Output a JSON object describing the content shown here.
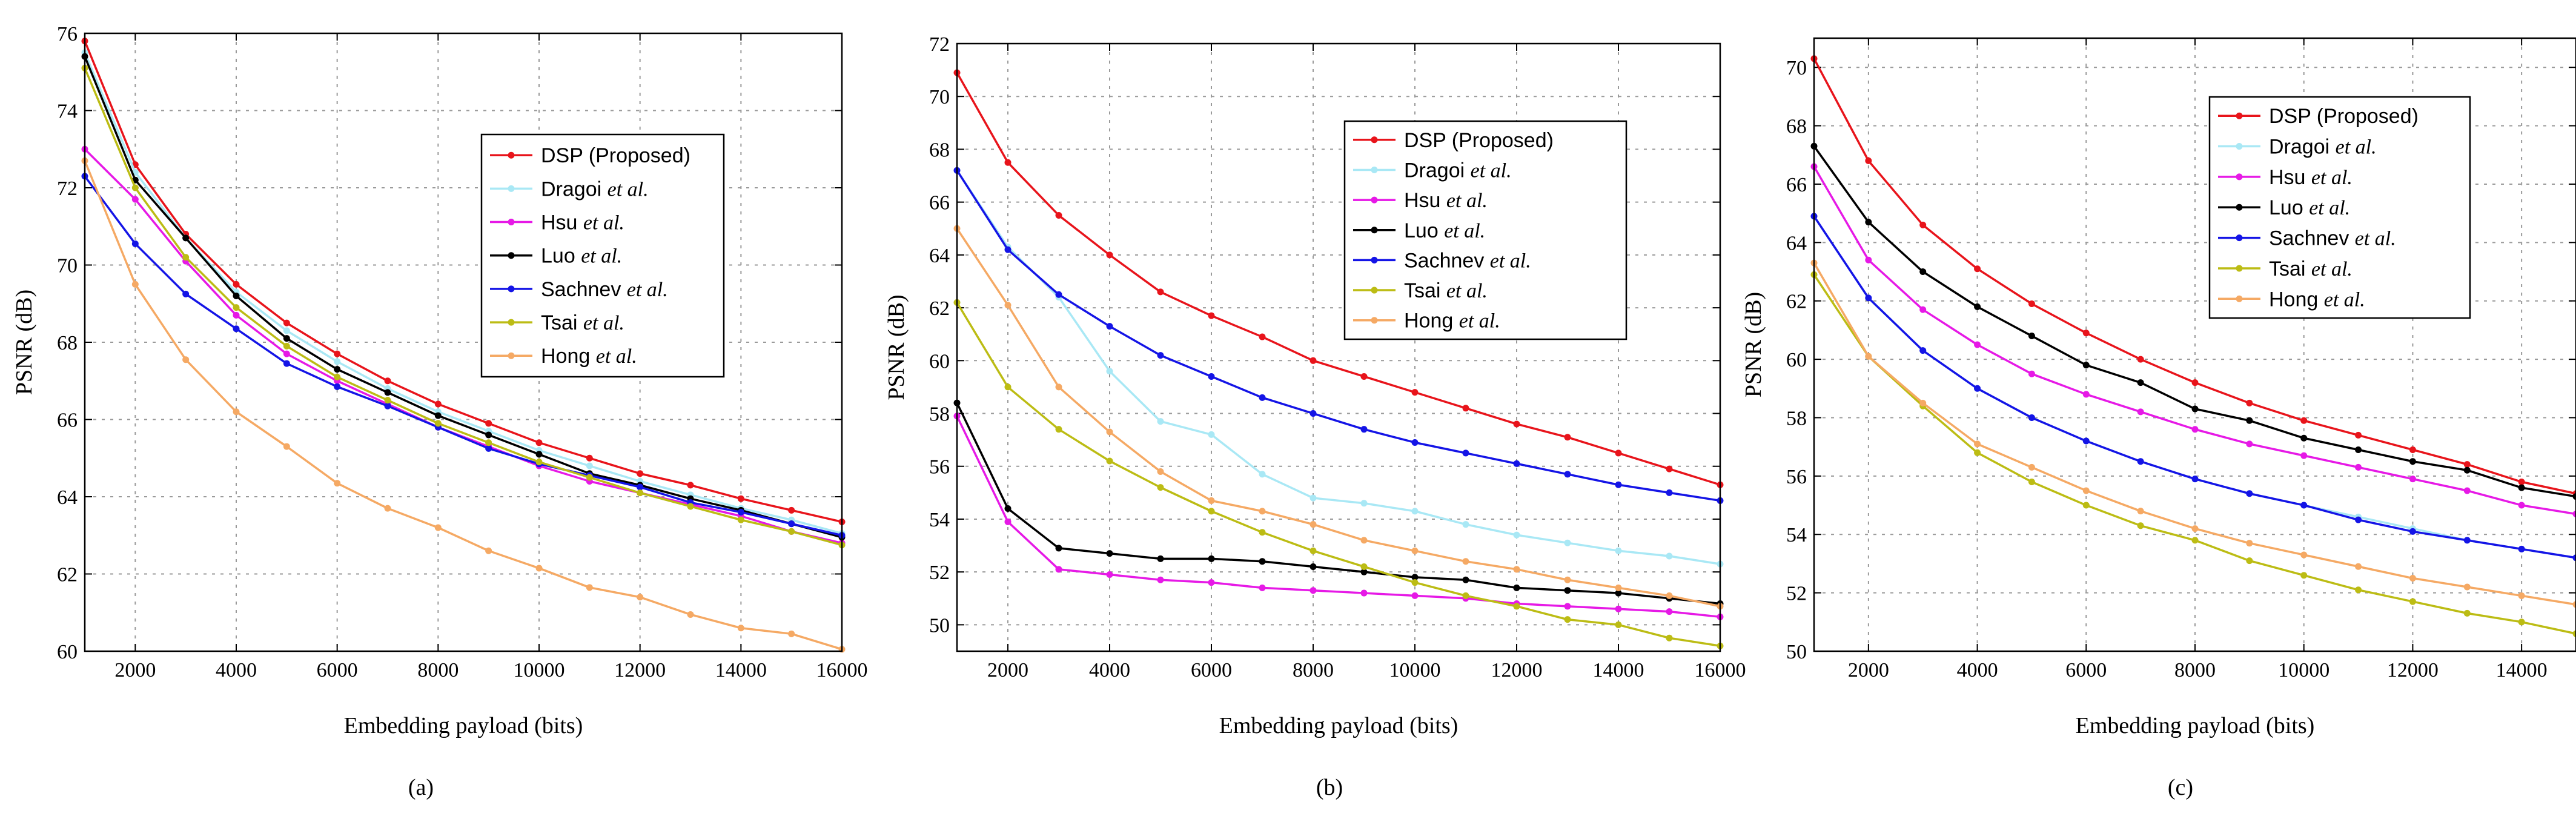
{
  "chart_data": [
    {
      "type": "line",
      "caption": "(a)",
      "xlabel": "Embedding payload (bits)",
      "ylabel": "PSNR (dB)",
      "xlim": [
        1000,
        16000
      ],
      "ylim": [
        60,
        76
      ],
      "xticks": [
        2000,
        4000,
        6000,
        8000,
        10000,
        12000,
        14000,
        16000
      ],
      "yticks": [
        60,
        62,
        64,
        66,
        68,
        70,
        72,
        74,
        76
      ],
      "grid": true,
      "legend_position": "center-right",
      "x": [
        1000,
        2000,
        3000,
        4000,
        5000,
        6000,
        7000,
        8000,
        9000,
        10000,
        11000,
        12000,
        13000,
        14000,
        15000,
        16000
      ],
      "series": [
        {
          "name": "DSP (Proposed)",
          "suffix": "",
          "color": "#e8141b",
          "values": [
            75.8,
            72.6,
            70.8,
            69.5,
            68.5,
            67.7,
            67.0,
            66.4,
            65.9,
            65.4,
            65.0,
            64.6,
            64.3,
            63.95,
            63.65,
            63.35
          ]
        },
        {
          "name": "Dragoi ",
          "suffix": "et al.",
          "color": "#a9e8f5",
          "values": [
            75.5,
            72.4,
            70.7,
            69.3,
            68.3,
            67.5,
            66.8,
            66.2,
            65.7,
            65.2,
            64.8,
            64.4,
            64.05,
            63.7,
            63.4,
            63.05
          ]
        },
        {
          "name": "Hsu ",
          "suffix": "et al.",
          "color": "#e619e6",
          "values": [
            73.0,
            71.7,
            70.1,
            68.7,
            67.7,
            67.0,
            66.4,
            65.8,
            65.3,
            64.8,
            64.4,
            64.1,
            63.8,
            63.5,
            63.1,
            62.8
          ]
        },
        {
          "name": "Luo ",
          "suffix": "et al.",
          "color": "#000000",
          "values": [
            75.4,
            72.2,
            70.7,
            69.2,
            68.1,
            67.3,
            66.7,
            66.1,
            65.6,
            65.1,
            64.6,
            64.3,
            63.95,
            63.65,
            63.3,
            62.95
          ]
        },
        {
          "name": "Sachnev ",
          "suffix": "et al.",
          "color": "#1414e6",
          "values": [
            72.3,
            70.55,
            69.25,
            68.35,
            67.45,
            66.85,
            66.35,
            65.8,
            65.25,
            64.85,
            64.55,
            64.25,
            63.85,
            63.6,
            63.3,
            63.0
          ]
        },
        {
          "name": "Tsai ",
          "suffix": "et al.",
          "color": "#bcbc14",
          "values": [
            75.1,
            72.0,
            70.2,
            68.9,
            67.9,
            67.1,
            66.5,
            65.9,
            65.4,
            64.9,
            64.5,
            64.1,
            63.75,
            63.4,
            63.1,
            62.75
          ]
        },
        {
          "name": "Hong ",
          "suffix": "et al.",
          "color": "#f5a964",
          "values": [
            72.7,
            69.5,
            67.55,
            66.2,
            65.3,
            64.35,
            63.7,
            63.2,
            62.6,
            62.15,
            61.65,
            61.4,
            60.95,
            60.6,
            60.45,
            60.05
          ]
        }
      ]
    },
    {
      "type": "line",
      "caption": "(b)",
      "xlabel": "Embedding payload (bits)",
      "ylabel": "PSNR (dB)",
      "xlim": [
        1000,
        16000
      ],
      "ylim": [
        49,
        72
      ],
      "xticks": [
        2000,
        4000,
        6000,
        8000,
        10000,
        12000,
        14000,
        16000
      ],
      "yticks": [
        50,
        52,
        54,
        56,
        58,
        60,
        62,
        64,
        66,
        68,
        70,
        72
      ],
      "grid": true,
      "legend_position": "top-right",
      "x": [
        1000,
        2000,
        3000,
        4000,
        5000,
        6000,
        7000,
        8000,
        9000,
        10000,
        11000,
        12000,
        13000,
        14000,
        15000,
        16000
      ],
      "series": [
        {
          "name": "DSP (Proposed)",
          "suffix": "",
          "color": "#e8141b",
          "values": [
            70.9,
            67.5,
            65.5,
            64.0,
            62.6,
            61.7,
            60.9,
            60.0,
            59.4,
            58.8,
            58.2,
            57.6,
            57.1,
            56.5,
            55.9,
            55.3
          ]
        },
        {
          "name": "Dragoi ",
          "suffix": "et al.",
          "color": "#a9e8f5",
          "values": [
            67.2,
            64.3,
            62.4,
            59.6,
            57.7,
            57.2,
            55.7,
            54.8,
            54.6,
            54.3,
            53.8,
            53.4,
            53.1,
            52.8,
            52.6,
            52.3
          ]
        },
        {
          "name": "Hsu ",
          "suffix": "et al.",
          "color": "#e619e6",
          "values": [
            57.9,
            53.9,
            52.1,
            51.9,
            51.7,
            51.6,
            51.4,
            51.3,
            51.2,
            51.1,
            51.0,
            50.8,
            50.7,
            50.6,
            50.5,
            50.3
          ]
        },
        {
          "name": "Luo ",
          "suffix": "et al.",
          "color": "#000000",
          "values": [
            58.4,
            54.4,
            52.9,
            52.7,
            52.5,
            52.5,
            52.4,
            52.2,
            52.0,
            51.8,
            51.7,
            51.4,
            51.3,
            51.2,
            51.0,
            50.8
          ]
        },
        {
          "name": "Sachnev ",
          "suffix": "et al.",
          "color": "#1414e6",
          "values": [
            67.2,
            64.2,
            62.5,
            61.3,
            60.2,
            59.4,
            58.6,
            58.0,
            57.4,
            56.9,
            56.5,
            56.1,
            55.7,
            55.3,
            55.0,
            54.7
          ]
        },
        {
          "name": "Tsai ",
          "suffix": "et al.",
          "color": "#bcbc14",
          "values": [
            62.2,
            59.0,
            57.4,
            56.2,
            55.2,
            54.3,
            53.5,
            52.8,
            52.2,
            51.6,
            51.1,
            50.7,
            50.2,
            50.0,
            49.5,
            49.2
          ]
        },
        {
          "name": "Hong ",
          "suffix": "et al.",
          "color": "#f5a964",
          "values": [
            65.0,
            62.1,
            59.0,
            57.3,
            55.8,
            54.7,
            54.3,
            53.8,
            53.2,
            52.8,
            52.4,
            52.1,
            51.7,
            51.4,
            51.1,
            50.7
          ]
        }
      ]
    },
    {
      "type": "line",
      "caption": "(c)",
      "xlabel": "Embedding payload (bits)",
      "ylabel": "PSNR (dB)",
      "xlim": [
        1000,
        15000
      ],
      "ylim": [
        50,
        71
      ],
      "xticks": [
        2000,
        4000,
        6000,
        8000,
        10000,
        12000,
        14000
      ],
      "yticks": [
        50,
        52,
        54,
        56,
        58,
        60,
        62,
        64,
        66,
        68,
        70
      ],
      "grid": true,
      "legend_position": "top-right",
      "x": [
        1000,
        2000,
        3000,
        4000,
        5000,
        6000,
        7000,
        8000,
        9000,
        10000,
        11000,
        12000,
        13000,
        14000,
        15000
      ],
      "series": [
        {
          "name": "DSP (Proposed)",
          "suffix": "",
          "color": "#e8141b",
          "values": [
            70.3,
            66.8,
            64.6,
            63.1,
            61.9,
            60.9,
            60.0,
            59.2,
            58.5,
            57.9,
            57.4,
            56.9,
            56.4,
            55.8,
            55.4
          ]
        },
        {
          "name": "Dragoi ",
          "suffix": "et al.",
          "color": "#a9e8f5",
          "values": [
            64.9,
            62.1,
            60.3,
            59.0,
            58.0,
            57.2,
            56.5,
            55.9,
            55.4,
            55.0,
            54.6,
            54.2,
            53.8,
            53.5,
            53.2
          ]
        },
        {
          "name": "Hsu ",
          "suffix": "et al.",
          "color": "#e619e6",
          "values": [
            66.6,
            63.4,
            61.7,
            60.5,
            59.5,
            58.8,
            58.2,
            57.6,
            57.1,
            56.7,
            56.3,
            55.9,
            55.5,
            55.0,
            54.7
          ]
        },
        {
          "name": "Luo ",
          "suffix": "et al.",
          "color": "#000000",
          "values": [
            67.3,
            64.7,
            63.0,
            61.8,
            60.8,
            59.8,
            59.2,
            58.3,
            57.9,
            57.3,
            56.9,
            56.5,
            56.2,
            55.6,
            55.3
          ]
        },
        {
          "name": "Sachnev ",
          "suffix": "et al.",
          "color": "#1414e6",
          "values": [
            64.9,
            62.1,
            60.3,
            59.0,
            58.0,
            57.2,
            56.5,
            55.9,
            55.4,
            55.0,
            54.5,
            54.1,
            53.8,
            53.5,
            53.2
          ]
        },
        {
          "name": "Tsai ",
          "suffix": "et al.",
          "color": "#bcbc14",
          "values": [
            62.9,
            60.1,
            58.4,
            56.8,
            55.8,
            55.0,
            54.3,
            53.8,
            53.1,
            52.6,
            52.1,
            51.7,
            51.3,
            51.0,
            50.6
          ]
        },
        {
          "name": "Hong ",
          "suffix": "et al.",
          "color": "#f5a964",
          "values": [
            63.3,
            60.1,
            58.5,
            57.1,
            56.3,
            55.5,
            54.8,
            54.2,
            53.7,
            53.3,
            52.9,
            52.5,
            52.2,
            51.9,
            51.6
          ]
        }
      ]
    }
  ]
}
